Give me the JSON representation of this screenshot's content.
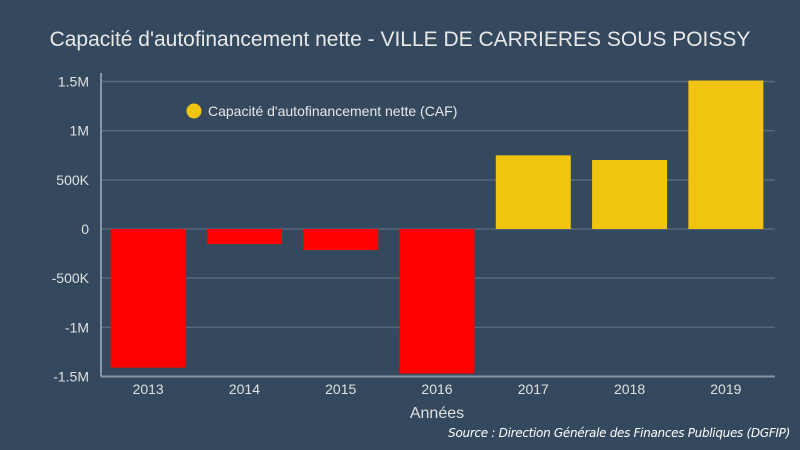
{
  "chart_data": {
    "type": "bar",
    "title": "Capacité d'autofinancement nette - VILLE DE CARRIERES SOUS POISSY",
    "xlabel": "Années",
    "ylabel": "",
    "categories": [
      "2013",
      "2014",
      "2015",
      "2016",
      "2017",
      "2018",
      "2019"
    ],
    "series": [
      {
        "name": "Capacité d'autofinancement nette (CAF)",
        "values": [
          -1410000,
          -153000,
          -214000,
          -1470000,
          749000,
          702000,
          1510000
        ]
      }
    ],
    "ylim": [
      -1500000,
      1500000
    ],
    "yticks": [
      1500000,
      1000000,
      500000,
      0,
      -500000,
      -1000000,
      -1500000
    ],
    "ytick_labels": [
      "1.5M",
      "1M",
      "500K",
      "0",
      "-500K",
      "-1M",
      "-1.5M"
    ],
    "grid": true,
    "legend_position": "top-left",
    "colors": {
      "positive": "#f1c40f",
      "negative": "#ff0000",
      "background": "#35495e",
      "grid": "#5a6878",
      "axis": "#8a96a3"
    }
  },
  "source": "Source : Direction Générale des Finances Publiques (DGFIP)"
}
